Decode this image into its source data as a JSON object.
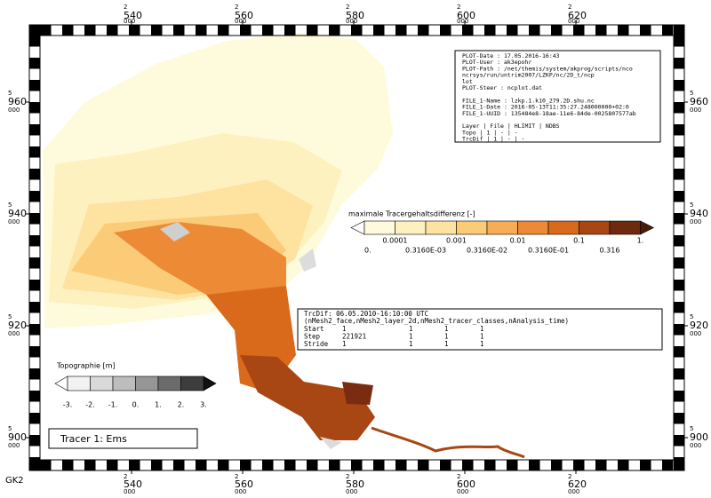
{
  "frame": {
    "x_ticks": [
      {
        "prefix": "2",
        "main": "540",
        "suffix": "000"
      },
      {
        "prefix": "2",
        "main": "560",
        "suffix": "000"
      },
      {
        "prefix": "2",
        "main": "580",
        "suffix": "000"
      },
      {
        "prefix": "2",
        "main": "600",
        "suffix": "000"
      },
      {
        "prefix": "2",
        "main": "620",
        "suffix": "000"
      }
    ],
    "y_ticks": [
      {
        "prefix": "5",
        "main": "960",
        "suffix": "000"
      },
      {
        "prefix": "5",
        "main": "940",
        "suffix": "000"
      },
      {
        "prefix": "5",
        "main": "920",
        "suffix": "000"
      },
      {
        "prefix": "5",
        "main": "900",
        "suffix": "000"
      }
    ],
    "crs": "GK2"
  },
  "info_box": {
    "lines": [
      "PLOT-Date  : 17.05.2016-16:43",
      "PLOT-User  : ak3epohr",
      "PLOT-Path  : /net/themis/system/akprog/scripts/nco",
      "             ncrsys/run/untrim2007/LZKP/nc/2D_t/ncp",
      "             lot",
      "PLOT-Steer : ncplot.dat",
      "",
      "FILE_1-Name : lzkp.1.k10_279.2D.shu.nc",
      "FILE_1-Date : 2016-05-13T11:35:27.248000000+02:0",
      "FILE_1-UUID : 135484e8-18ae-11e6-84de-0025807577ab",
      "",
      "Layer  | File | HLIMIT | NDBS",
      "Topo   |  1   |   -    |  -",
      "TrcDif |  1   |   -    |  -"
    ]
  },
  "tracer_legend": {
    "title": "maximale Tracergehaltsdifferenz [-]",
    "upper_labels": [
      "0.0001",
      "0.001",
      "0.01",
      "0.1",
      "1."
    ],
    "lower_labels": [
      "0.",
      "0.3160E-03",
      "0.3160E-02",
      "0.3160E-01",
      "0.316"
    ],
    "colors": [
      "#fefbdc",
      "#fdf1c0",
      "#fde2a0",
      "#fbcb78",
      "#f6ad55",
      "#ec8a35",
      "#d96a1c",
      "#a84614",
      "#6e2a0e"
    ],
    "under_color": "#ffffff",
    "over_color": "#4a1c08"
  },
  "topo_legend": {
    "title": "Topographie [m]",
    "labels": [
      "-3.",
      "-2.",
      "-1.",
      "0.",
      "1.",
      "2.",
      "3."
    ],
    "colors": [
      "#f2f2f2",
      "#d9d9d9",
      "#bdbdbd",
      "#969696",
      "#6b6b6b",
      "#3d3d3d"
    ],
    "under_color": "#ffffff",
    "over_color": "#111111"
  },
  "selection_box": {
    "title": "TrcDif:  06.05.2010-16:10:00 UTC",
    "dims": "(nMesh2_face,nMesh2_layer_2d,nMesh2_tracer_classes,nAnalysis_time)",
    "rows": [
      [
        "Start",
        "1",
        "1",
        "1",
        "1"
      ],
      [
        "Step",
        "221921",
        "1",
        "1",
        "1"
      ],
      [
        "Stride",
        "1",
        "1",
        "1",
        "1"
      ]
    ]
  },
  "caption": "Tracer 1: Ems"
}
